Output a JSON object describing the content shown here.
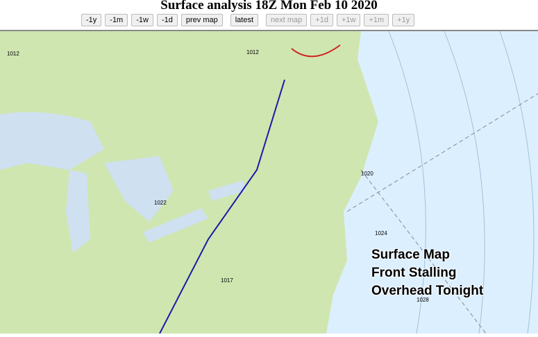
{
  "header": {
    "title": "Surface analysis 18Z Mon Feb 10 2020"
  },
  "nav_buttons": [
    {
      "label": "-1y",
      "enabled": true
    },
    {
      "label": "-1m",
      "enabled": true
    },
    {
      "label": "-1w",
      "enabled": true
    },
    {
      "label": "-1d",
      "enabled": true
    },
    {
      "label": "prev map",
      "enabled": true
    },
    {
      "label": "latest",
      "enabled": true
    },
    {
      "label": "next map",
      "enabled": false
    },
    {
      "label": "+1d",
      "enabled": false
    },
    {
      "label": "+1w",
      "enabled": false
    },
    {
      "label": "+1m",
      "enabled": false
    },
    {
      "label": "+1y",
      "enabled": false
    }
  ],
  "map": {
    "overlay_lines": [
      "Surface Map",
      "Front Stalling",
      "Overhead Tonight"
    ],
    "pressure_labels": [
      "1012",
      "1012",
      "1020",
      "1024",
      "1028",
      "1017",
      "1022"
    ],
    "colors": {
      "land": "#cfe6b0",
      "ocean": "#dcefff",
      "front_cold": "#1a1aa8",
      "front_warm": "#d02020"
    }
  }
}
